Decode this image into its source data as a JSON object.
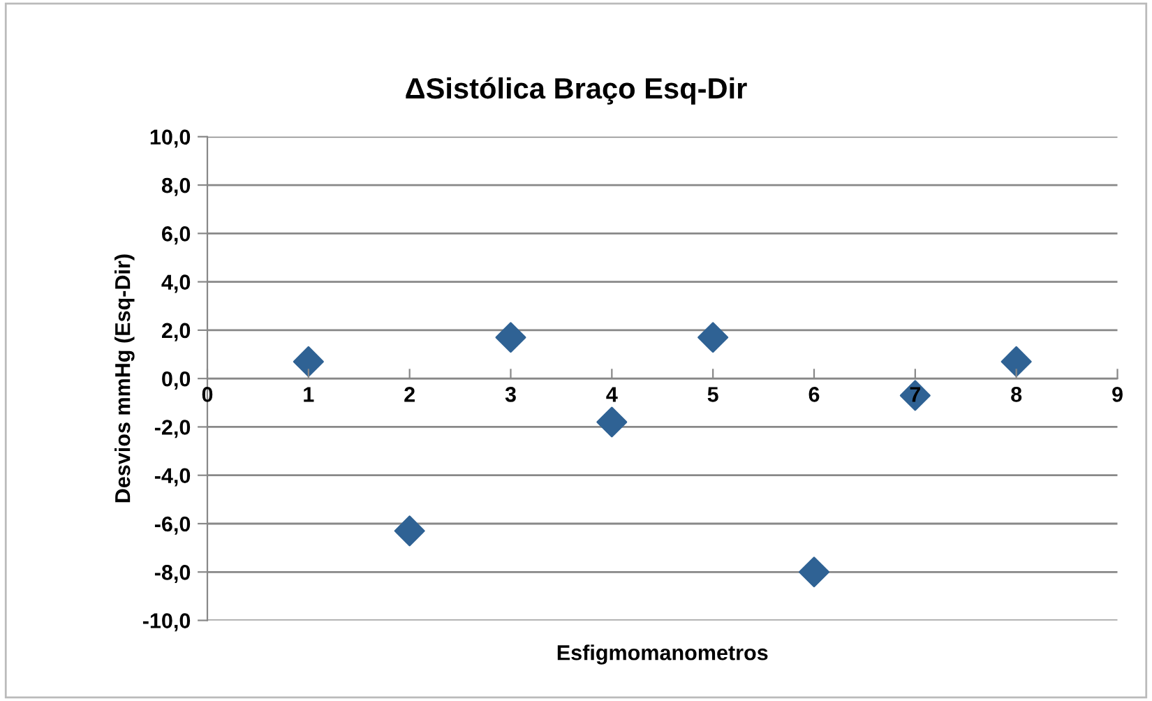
{
  "chart_data": {
    "type": "scatter",
    "title": "ΔSistólica Braço Esq-Dir",
    "xlabel": "Esfigmomanometros",
    "ylabel": "Desvios mmHg (Esq-Dir)",
    "x": [
      1,
      2,
      3,
      4,
      5,
      6,
      7,
      8
    ],
    "series": [
      {
        "color": "#2f6294",
        "values": [
          0.7,
          -6.3,
          1.7,
          -1.8,
          1.7,
          -8.0,
          -0.7,
          0.7
        ]
      }
    ],
    "marker": "diamond",
    "grid": "y",
    "xlim": [
      0,
      9
    ],
    "xticks": [
      0,
      1,
      2,
      3,
      4,
      5,
      6,
      7,
      8,
      9
    ],
    "ylim": [
      -10,
      10
    ],
    "yticks": [
      {
        "value": -10,
        "label": "-10,0"
      },
      {
        "value": -8,
        "label": "-8,0"
      },
      {
        "value": -6,
        "label": "-6,0"
      },
      {
        "value": -4,
        "label": "-4,0"
      },
      {
        "value": -2,
        "label": "-2,0"
      },
      {
        "value": 0,
        "label": "0,0"
      },
      {
        "value": 2,
        "label": "2,0"
      },
      {
        "value": 4,
        "label": "4,0"
      },
      {
        "value": 6,
        "label": "6,0"
      },
      {
        "value": 8,
        "label": "8,0"
      },
      {
        "value": 10,
        "label": "10,0"
      }
    ]
  }
}
